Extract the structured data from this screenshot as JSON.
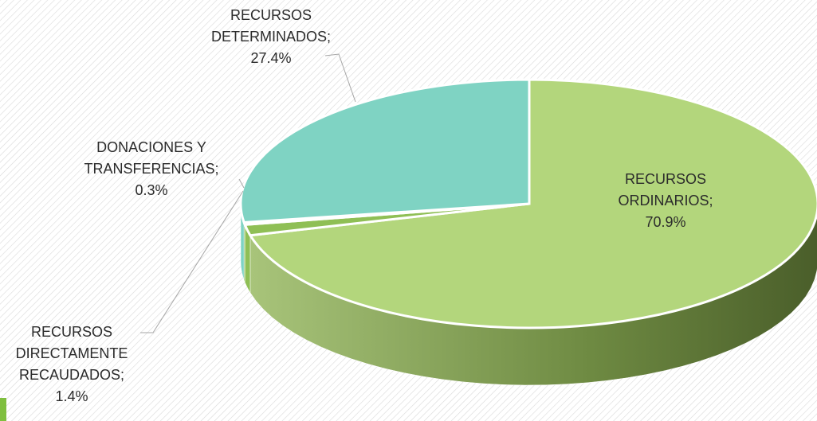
{
  "chart_data": {
    "type": "pie",
    "categories": [
      "RECURSOS ORDINARIOS",
      "RECURSOS DIRECTAMENTE RECAUDADOS",
      "DONACIONES Y TRANSFERENCIAS",
      "RECURSOS DETERMINADOS"
    ],
    "values": [
      70.9,
      1.4,
      0.3,
      27.4
    ],
    "value_labels": [
      "70.9%",
      "1.4%",
      "0.3%",
      "27.4%"
    ],
    "label_separator": ";",
    "colors": [
      "#b3d67c",
      "#8fbf55",
      "#7db24a",
      "#7fd3c3"
    ]
  }
}
